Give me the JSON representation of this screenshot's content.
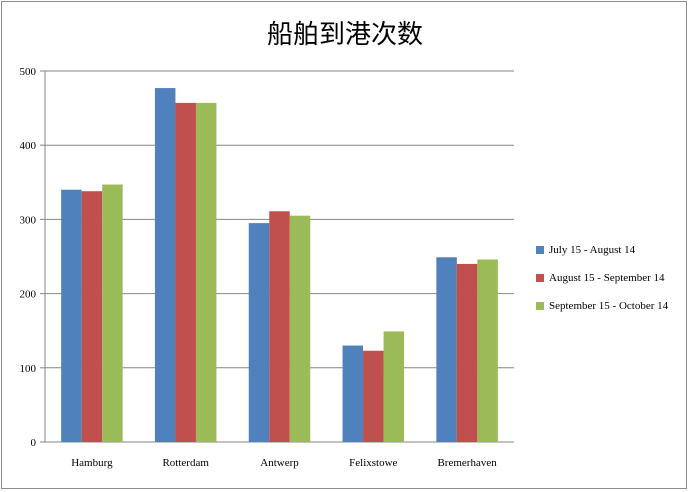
{
  "chart_data": {
    "type": "bar",
    "title": "船舶到港次数",
    "categories": [
      "Hamburg",
      "Rotterdam",
      "Antwerp",
      "Felixstowe",
      "Bremerhaven"
    ],
    "series": [
      {
        "name": "July 15 - August 14",
        "color": "#4f81bd",
        "values": [
          340,
          477,
          295,
          130,
          249
        ]
      },
      {
        "name": "August 15 - September 14",
        "color": "#c0504d",
        "values": [
          338,
          457,
          311,
          123,
          240
        ]
      },
      {
        "name": "September 15 - October 14",
        "color": "#9bbb59",
        "values": [
          347,
          457,
          305,
          149,
          246
        ]
      }
    ],
    "ylim": [
      0,
      500
    ],
    "yticks": [
      "0",
      "100",
      "200",
      "300",
      "400",
      "500"
    ],
    "grid": true,
    "legend": "right"
  }
}
